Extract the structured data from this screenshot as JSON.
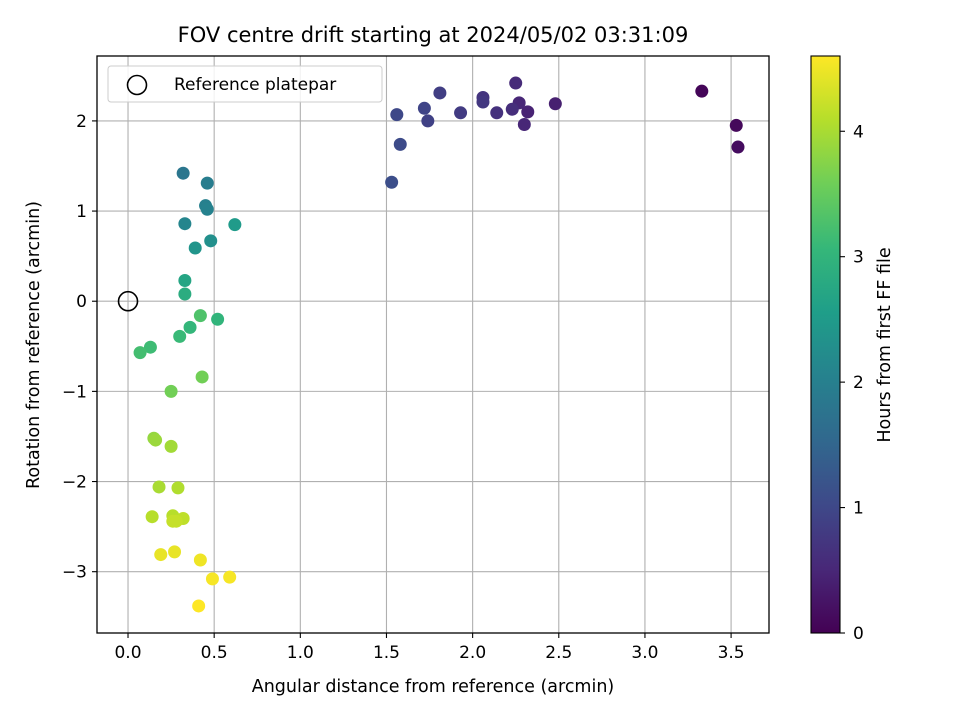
{
  "chart_data": {
    "type": "scatter",
    "title": "FOV centre drift starting at 2024/05/02 03:31:09",
    "xlabel": "Angular distance from reference (arcmin)",
    "ylabel": "Rotation from reference (arcmin)",
    "xlim": [
      -0.18,
      3.72
    ],
    "ylim": [
      -3.68,
      2.72
    ],
    "x_ticks": [
      0.0,
      0.5,
      1.0,
      1.5,
      2.0,
      2.5,
      3.0,
      3.5
    ],
    "x_tick_labels": [
      "0.0",
      "0.5",
      "1.0",
      "1.5",
      "2.0",
      "2.5",
      "3.0",
      "3.5"
    ],
    "y_ticks": [
      -3,
      -2,
      -1,
      0,
      1,
      2
    ],
    "y_tick_labels": [
      "−3",
      "−2",
      "−1",
      "0",
      "1",
      "2"
    ],
    "grid": true,
    "legend": {
      "placement": "top-left",
      "entries": [
        {
          "label": "Reference platepar",
          "marker": "open-circle",
          "x": 0.0,
          "y": 0.0
        }
      ]
    },
    "colorbar": {
      "label": "Hours from first FF file",
      "range": [
        0,
        4.6
      ],
      "ticks": [
        0,
        1,
        2,
        3,
        4
      ],
      "tick_labels": [
        "0",
        "1",
        "2",
        "3",
        "4"
      ],
      "colormap": "viridis",
      "stops": [
        "#440154",
        "#482878",
        "#3e4989",
        "#31688e",
        "#26828e",
        "#1f9e89",
        "#35b779",
        "#6ece58",
        "#b5de2b",
        "#fde725"
      ]
    },
    "points": [
      {
        "x": 3.33,
        "y": 2.33,
        "h": 0.05
      },
      {
        "x": 3.53,
        "y": 1.95,
        "h": 0.1
      },
      {
        "x": 3.54,
        "y": 1.71,
        "h": 0.15
      },
      {
        "x": 2.48,
        "y": 2.19,
        "h": 0.4
      },
      {
        "x": 2.32,
        "y": 2.1,
        "h": 0.45
      },
      {
        "x": 2.3,
        "y": 1.96,
        "h": 0.5
      },
      {
        "x": 2.27,
        "y": 2.2,
        "h": 0.5
      },
      {
        "x": 2.25,
        "y": 2.42,
        "h": 0.55
      },
      {
        "x": 2.23,
        "y": 2.13,
        "h": 0.6
      },
      {
        "x": 2.14,
        "y": 2.09,
        "h": 0.65
      },
      {
        "x": 2.06,
        "y": 2.26,
        "h": 0.7
      },
      {
        "x": 2.06,
        "y": 2.21,
        "h": 0.75
      },
      {
        "x": 1.93,
        "y": 2.09,
        "h": 0.8
      },
      {
        "x": 1.81,
        "y": 2.31,
        "h": 0.85
      },
      {
        "x": 1.74,
        "y": 2.0,
        "h": 0.9
      },
      {
        "x": 1.72,
        "y": 2.14,
        "h": 0.95
      },
      {
        "x": 1.56,
        "y": 2.07,
        "h": 1.0
      },
      {
        "x": 1.58,
        "y": 1.74,
        "h": 1.05
      },
      {
        "x": 1.53,
        "y": 1.32,
        "h": 1.1
      },
      {
        "x": 0.32,
        "y": 1.42,
        "h": 1.8
      },
      {
        "x": 0.46,
        "y": 1.31,
        "h": 1.95
      },
      {
        "x": 0.45,
        "y": 1.06,
        "h": 2.0
      },
      {
        "x": 0.46,
        "y": 1.02,
        "h": 2.05
      },
      {
        "x": 0.33,
        "y": 0.86,
        "h": 2.1
      },
      {
        "x": 0.48,
        "y": 0.67,
        "h": 2.3
      },
      {
        "x": 0.39,
        "y": 0.59,
        "h": 2.4
      },
      {
        "x": 0.62,
        "y": 0.85,
        "h": 2.5
      },
      {
        "x": 0.33,
        "y": 0.23,
        "h": 2.7
      },
      {
        "x": 0.33,
        "y": 0.08,
        "h": 2.85
      },
      {
        "x": 0.52,
        "y": -0.2,
        "h": 3.0
      },
      {
        "x": 0.36,
        "y": -0.29,
        "h": 3.05
      },
      {
        "x": 0.3,
        "y": -0.39,
        "h": 3.1
      },
      {
        "x": 0.13,
        "y": -0.51,
        "h": 3.15
      },
      {
        "x": 0.07,
        "y": -0.57,
        "h": 3.2
      },
      {
        "x": 0.42,
        "y": -0.16,
        "h": 3.3
      },
      {
        "x": 0.43,
        "y": -0.84,
        "h": 3.6
      },
      {
        "x": 0.25,
        "y": -1.0,
        "h": 3.6
      },
      {
        "x": 0.15,
        "y": -1.52,
        "h": 3.85
      },
      {
        "x": 0.16,
        "y": -1.54,
        "h": 3.9
      },
      {
        "x": 0.25,
        "y": -1.61,
        "h": 3.95
      },
      {
        "x": 0.18,
        "y": -2.06,
        "h": 4.0
      },
      {
        "x": 0.29,
        "y": -2.07,
        "h": 4.05
      },
      {
        "x": 0.14,
        "y": -2.39,
        "h": 4.1
      },
      {
        "x": 0.26,
        "y": -2.38,
        "h": 4.1
      },
      {
        "x": 0.32,
        "y": -2.41,
        "h": 4.15
      },
      {
        "x": 0.26,
        "y": -2.44,
        "h": 4.2
      },
      {
        "x": 0.28,
        "y": -2.44,
        "h": 4.2
      },
      {
        "x": 0.19,
        "y": -2.81,
        "h": 4.45
      },
      {
        "x": 0.27,
        "y": -2.78,
        "h": 4.45
      },
      {
        "x": 0.42,
        "y": -2.87,
        "h": 4.5
      },
      {
        "x": 0.49,
        "y": -3.08,
        "h": 4.55
      },
      {
        "x": 0.59,
        "y": -3.06,
        "h": 4.55
      },
      {
        "x": 0.41,
        "y": -3.38,
        "h": 4.6
      }
    ]
  }
}
